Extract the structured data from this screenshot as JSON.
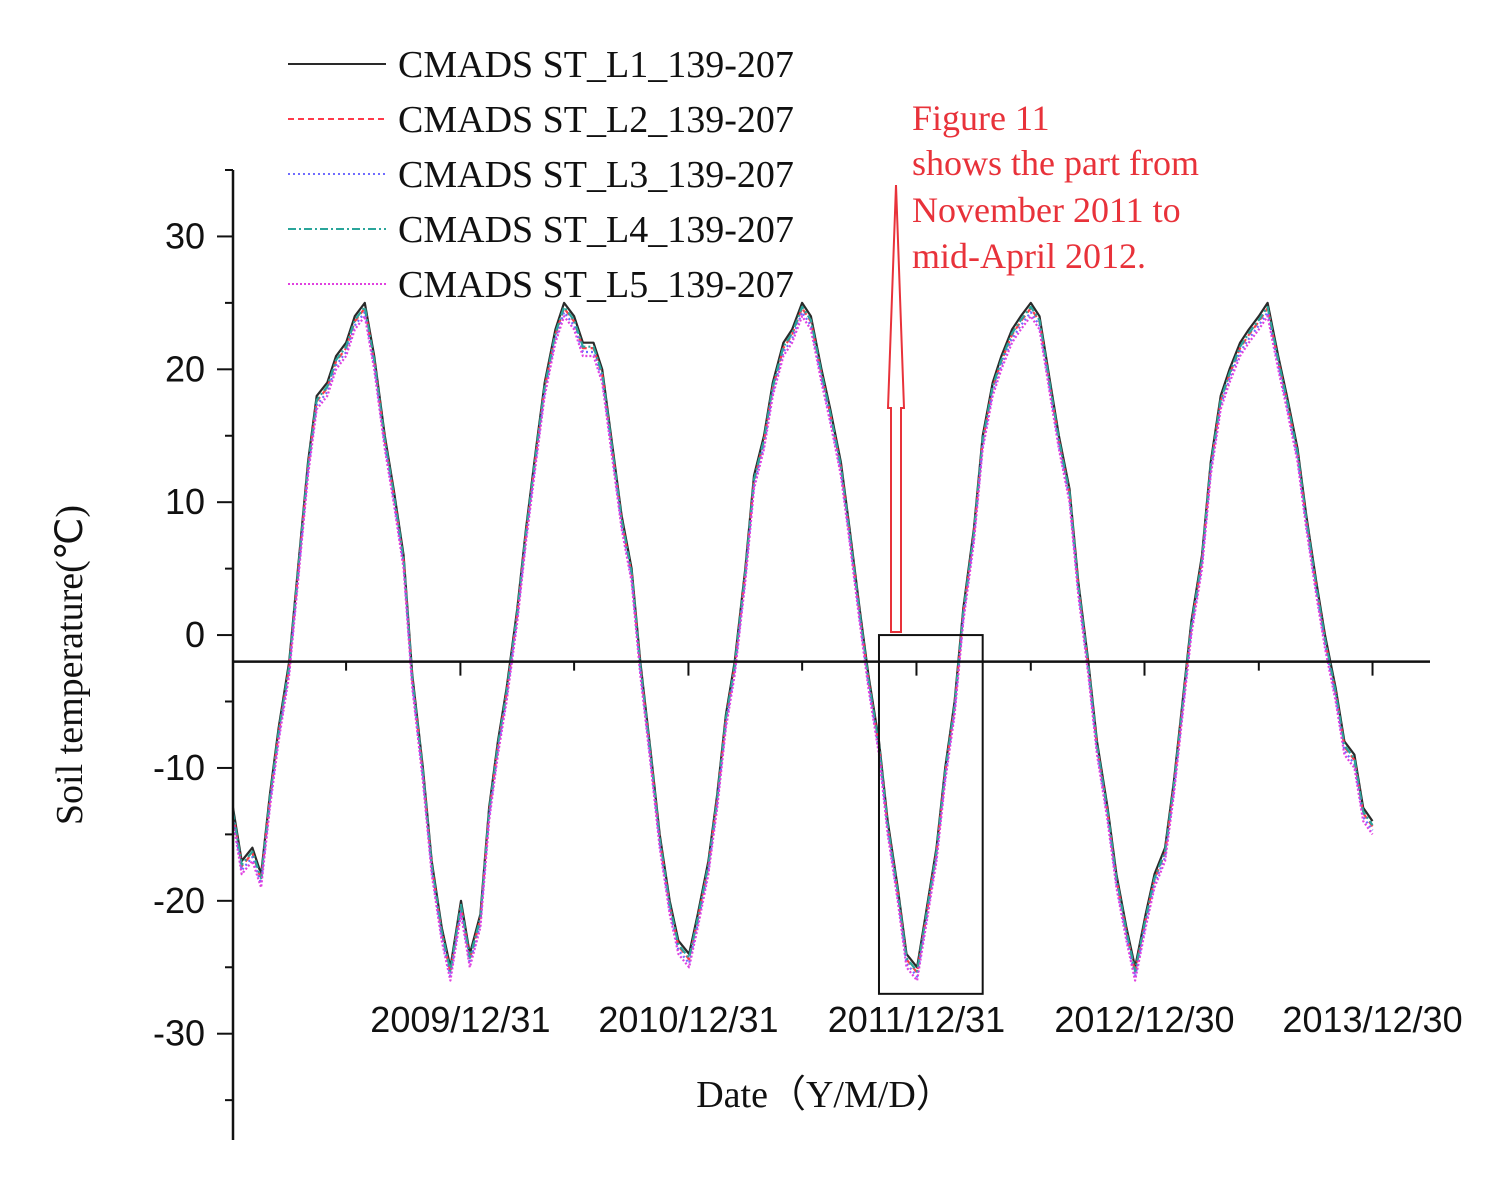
{
  "chart_data": {
    "type": "line",
    "xlabel": "Date（Y/M/D）",
    "ylabel": "Soil temperature(℃)",
    "ylim": [
      -38,
      35
    ],
    "xlim": [
      "2009-01-01",
      "2014-04-01"
    ],
    "yticks": [
      30,
      20,
      10,
      0,
      -10,
      -20,
      -30
    ],
    "xticks": [
      {
        "date": "2009-12-31",
        "label": "2009/12/31"
      },
      {
        "date": "2010-12-31",
        "label": "2010/12/31"
      },
      {
        "date": "2011-12-31",
        "label": "2011/12/31"
      },
      {
        "date": "2012-12-30",
        "label": "2012/12/30"
      },
      {
        "date": "2013-12-30",
        "label": "2013/12/30"
      }
    ],
    "baseline_y": -2,
    "series": [
      {
        "name": "CMADS ST_L1_139-207",
        "color": "#2a2a2a",
        "dash": "",
        "offset": 0.0
      },
      {
        "name": "CMADS ST_L2_139-207",
        "color": "#ff3b4a",
        "dash": "6,4",
        "offset": -0.4
      },
      {
        "name": "CMADS ST_L3_139-207",
        "color": "#6f6cff",
        "dash": "2,3",
        "offset": -0.7
      },
      {
        "name": "CMADS ST_L4_139-207",
        "color": "#2aa59a",
        "dash": "8,3,2,3",
        "offset": -0.3
      },
      {
        "name": "CMADS ST_L5_139-207",
        "color": "#e040e0",
        "dash": "2,2",
        "offset": -1.0
      }
    ],
    "points": [
      [
        "2009-01-01",
        -13
      ],
      [
        "2009-01-15",
        -17
      ],
      [
        "2009-02-01",
        -16
      ],
      [
        "2009-02-15",
        -18
      ],
      [
        "2009-03-01",
        -12
      ],
      [
        "2009-03-15",
        -7
      ],
      [
        "2009-04-01",
        -2
      ],
      [
        "2009-04-15",
        5
      ],
      [
        "2009-05-01",
        13
      ],
      [
        "2009-05-15",
        18
      ],
      [
        "2009-06-01",
        19
      ],
      [
        "2009-06-15",
        21
      ],
      [
        "2009-07-01",
        22
      ],
      [
        "2009-07-15",
        24
      ],
      [
        "2009-07-31",
        25
      ],
      [
        "2009-08-15",
        21
      ],
      [
        "2009-09-01",
        15
      ],
      [
        "2009-09-15",
        11
      ],
      [
        "2009-10-01",
        6
      ],
      [
        "2009-10-15",
        -3
      ],
      [
        "2009-11-01",
        -10
      ],
      [
        "2009-11-15",
        -17
      ],
      [
        "2009-12-01",
        -22
      ],
      [
        "2009-12-15",
        -25
      ],
      [
        "2010-01-01",
        -20
      ],
      [
        "2010-01-15",
        -24
      ],
      [
        "2010-02-01",
        -21
      ],
      [
        "2010-02-15",
        -13
      ],
      [
        "2010-03-01",
        -8
      ],
      [
        "2010-03-15",
        -4
      ],
      [
        "2010-04-01",
        2
      ],
      [
        "2010-04-15",
        8
      ],
      [
        "2010-05-01",
        14
      ],
      [
        "2010-05-15",
        19
      ],
      [
        "2010-06-01",
        23
      ],
      [
        "2010-06-15",
        25
      ],
      [
        "2010-07-01",
        24
      ],
      [
        "2010-07-15",
        22
      ],
      [
        "2010-08-01",
        22
      ],
      [
        "2010-08-15",
        20
      ],
      [
        "2010-09-01",
        14
      ],
      [
        "2010-09-15",
        9
      ],
      [
        "2010-10-01",
        5
      ],
      [
        "2010-10-15",
        -2
      ],
      [
        "2010-11-01",
        -9
      ],
      [
        "2010-11-15",
        -15
      ],
      [
        "2010-12-01",
        -20
      ],
      [
        "2010-12-15",
        -23
      ],
      [
        "2011-01-01",
        -24
      ],
      [
        "2011-01-15",
        -21
      ],
      [
        "2011-02-01",
        -17
      ],
      [
        "2011-02-15",
        -12
      ],
      [
        "2011-03-01",
        -6
      ],
      [
        "2011-03-15",
        -2
      ],
      [
        "2011-04-01",
        5
      ],
      [
        "2011-04-15",
        12
      ],
      [
        "2011-05-01",
        15
      ],
      [
        "2011-05-15",
        19
      ],
      [
        "2011-06-01",
        22
      ],
      [
        "2011-06-15",
        23
      ],
      [
        "2011-07-01",
        25
      ],
      [
        "2011-07-15",
        24
      ],
      [
        "2011-08-01",
        20
      ],
      [
        "2011-08-15",
        17
      ],
      [
        "2011-09-01",
        13
      ],
      [
        "2011-09-15",
        8
      ],
      [
        "2011-10-01",
        2
      ],
      [
        "2011-10-15",
        -3
      ],
      [
        "2011-11-01",
        -8
      ],
      [
        "2011-11-15",
        -14
      ],
      [
        "2011-12-01",
        -19
      ],
      [
        "2011-12-15",
        -24
      ],
      [
        "2012-01-01",
        -25
      ],
      [
        "2012-01-15",
        -21
      ],
      [
        "2012-02-01",
        -16
      ],
      [
        "2012-02-15",
        -10
      ],
      [
        "2012-03-01",
        -5
      ],
      [
        "2012-03-15",
        2
      ],
      [
        "2012-04-01",
        8
      ],
      [
        "2012-04-15",
        15
      ],
      [
        "2012-05-01",
        19
      ],
      [
        "2012-05-15",
        21
      ],
      [
        "2012-06-01",
        23
      ],
      [
        "2012-06-15",
        24
      ],
      [
        "2012-07-01",
        25
      ],
      [
        "2012-07-15",
        24
      ],
      [
        "2012-08-01",
        19
      ],
      [
        "2012-08-15",
        15
      ],
      [
        "2012-09-01",
        11
      ],
      [
        "2012-09-15",
        4
      ],
      [
        "2012-10-01",
        -2
      ],
      [
        "2012-10-15",
        -8
      ],
      [
        "2012-11-01",
        -13
      ],
      [
        "2012-11-15",
        -18
      ],
      [
        "2012-12-01",
        -22
      ],
      [
        "2012-12-15",
        -25
      ],
      [
        "2013-01-01",
        -21
      ],
      [
        "2013-01-15",
        -18
      ],
      [
        "2013-02-01",
        -16
      ],
      [
        "2013-02-15",
        -11
      ],
      [
        "2013-03-01",
        -5
      ],
      [
        "2013-03-15",
        1
      ],
      [
        "2013-04-01",
        6
      ],
      [
        "2013-04-15",
        13
      ],
      [
        "2013-05-01",
        18
      ],
      [
        "2013-05-15",
        20
      ],
      [
        "2013-06-01",
        22
      ],
      [
        "2013-06-15",
        23
      ],
      [
        "2013-07-01",
        24
      ],
      [
        "2013-07-15",
        25
      ],
      [
        "2013-08-01",
        21
      ],
      [
        "2013-08-15",
        18
      ],
      [
        "2013-09-01",
        14
      ],
      [
        "2013-09-15",
        9
      ],
      [
        "2013-10-01",
        4
      ],
      [
        "2013-10-15",
        0
      ],
      [
        "2013-11-01",
        -4
      ],
      [
        "2013-11-15",
        -8
      ],
      [
        "2013-12-01",
        -9
      ],
      [
        "2013-12-15",
        -13
      ],
      [
        "2013-12-30",
        -14
      ]
    ],
    "highlight": {
      "from": "2011-11-01",
      "to": "2012-04-15",
      "ymin": -27,
      "ymax": 0
    }
  },
  "legend": [
    "CMADS ST_L1_139-207",
    "CMADS ST_L2_139-207",
    "CMADS ST_L3_139-207",
    "CMADS ST_L4_139-207",
    "CMADS ST_L5_139-207"
  ],
  "annotation": {
    "lines": [
      "Figure 11",
      "shows the part from",
      "November 2011 to",
      "mid-April 2012."
    ],
    "color": "#e8323a"
  }
}
